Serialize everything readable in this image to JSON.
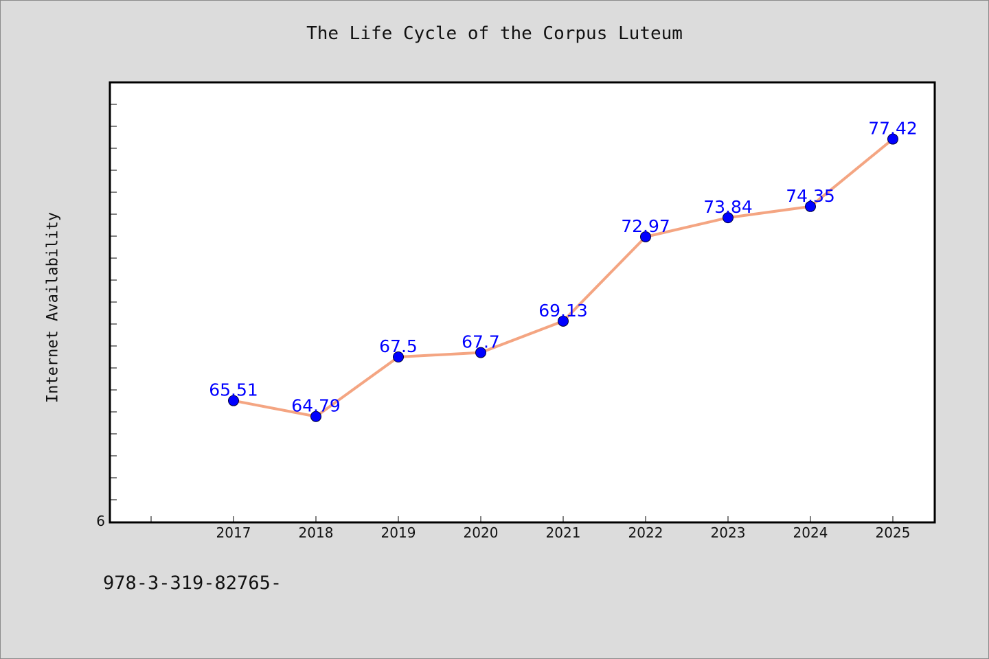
{
  "chart_data": {
    "type": "line",
    "title": "The Life Cycle of the Corpus Luteum",
    "ylabel": "Internet Availability",
    "xlabel": "",
    "x": [
      "2017",
      "2018",
      "2019",
      "2020",
      "2021",
      "2022",
      "2023",
      "2024",
      "2025"
    ],
    "series": [
      {
        "values": [
          65.51,
          64.79,
          67.5,
          67.7,
          69.13,
          72.97,
          73.84,
          74.35,
          77.42
        ],
        "data_labels": [
          "65.51",
          "64.79",
          "67.5",
          "67.7",
          "69.13",
          "72.97",
          "73.84",
          "74.35",
          "77.42"
        ]
      }
    ],
    "y_tick_labels": [
      "6"
    ],
    "ylim": [
      60,
      80
    ],
    "grid": false,
    "line_color": "#f4a582",
    "marker_color": "#0000ff",
    "label_color": "#0000ff"
  },
  "footer": {
    "code": "978-3-319-82765-"
  }
}
